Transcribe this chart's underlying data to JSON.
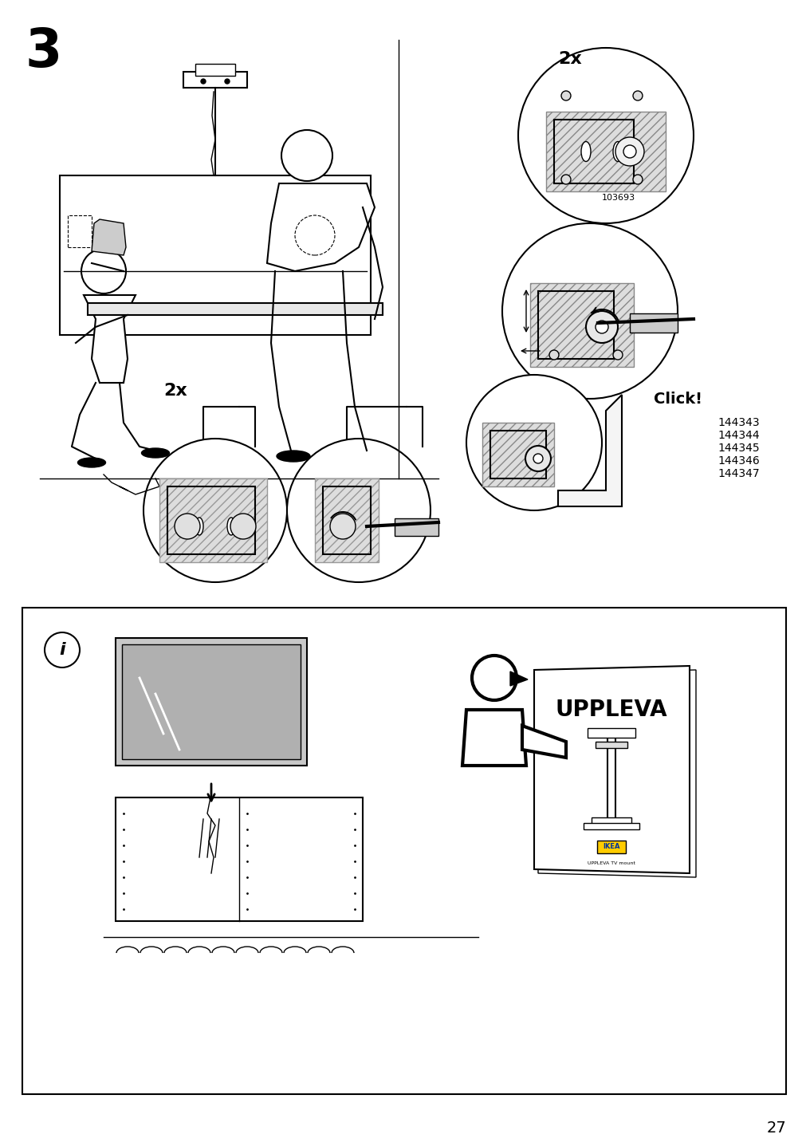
{
  "background_color": "#ffffff",
  "page_number": "27",
  "step_number": "3",
  "part_numbers": [
    "144343",
    "144344",
    "144345",
    "144346",
    "144347"
  ],
  "part_number_103693": "103693",
  "label_2x_top": "2x",
  "label_2x_bottom": "2x",
  "label_click": "Click!",
  "label_uppleva": "UPPLEVA",
  "line_color": "#000000",
  "step_numeral_fontsize": 48,
  "page_number_fontsize": 14,
  "label_fontsize": 16,
  "click_fontsize": 14,
  "parts_fontsize": 10,
  "uppleva_fontsize": 20
}
